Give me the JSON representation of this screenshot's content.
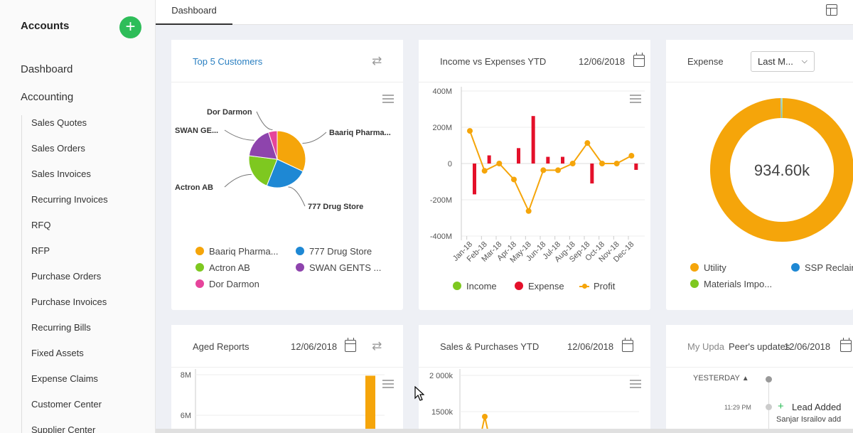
{
  "sidebar": {
    "title": "Accounts",
    "add_symbol": "+",
    "dashboard": "Dashboard",
    "accounting": "Accounting",
    "items": [
      "Sales Quotes",
      "Sales Orders",
      "Sales Invoices",
      "Recurring Invoices",
      "RFQ",
      "RFP",
      "Purchase Orders",
      "Purchase Invoices",
      "Recurring Bills",
      "Fixed Assets",
      "Expense Claims",
      "Customer Center",
      "Supplier Center"
    ]
  },
  "tabs": {
    "active": "Dashboard"
  },
  "cards": {
    "top5": {
      "title": "Top 5 Customers"
    },
    "income": {
      "title": "Income vs Expenses YTD",
      "date": "12/06/2018"
    },
    "expense": {
      "title": "Expense",
      "filter": "Last M...",
      "center_value": "934.60k"
    },
    "aged": {
      "title": "Aged Reports",
      "date": "12/06/2018"
    },
    "sales": {
      "title": "Sales & Purchases YTD",
      "date": "12/06/2018"
    },
    "updates": {
      "title_a": "My Upda",
      "title_b": "Peer's updates",
      "date": "12/06/2018",
      "group": "YESTERDAY",
      "time": "11:29 PM",
      "entry": "Lead Added",
      "entry_by": "Sanjar Israilov add"
    }
  },
  "colors": {
    "accent_green": "#2ebd59",
    "blue": "#1e88d4",
    "orange": "#f5a50a",
    "red": "#e4102a",
    "purple": "#8e44ad",
    "pink": "#e6449b",
    "lime": "#7ec820"
  },
  "chart_data": [
    {
      "type": "pie",
      "categories": [
        "Baariq Pharma...",
        "777 Drug Store",
        "Actron AB",
        "SWAN GENTS ...",
        "Dor Darmon"
      ],
      "slice_labels": [
        "Baariq Pharma...",
        "777 Drug Store",
        "Actron AB",
        "SWAN GE...",
        "Dor Darmon"
      ],
      "values": [
        32,
        24,
        21,
        18,
        5
      ],
      "colors": [
        "#f5a50a",
        "#1e88d4",
        "#7ec820",
        "#8e44ad",
        "#e6449b"
      ]
    },
    {
      "type": "bar",
      "categories": [
        "Jan-18",
        "Feb-18",
        "Mar-18",
        "Apr-18",
        "May-18",
        "Jun-18",
        "Jul-18",
        "Aug-18",
        "Sep-18",
        "Oct-18",
        "Nov-18",
        "Dec-18"
      ],
      "ylim": [
        -400,
        400
      ],
      "yticks": [
        "400M",
        "200M",
        "0",
        "-200M",
        "-400M"
      ],
      "series": [
        {
          "name": "Income",
          "type": "bar",
          "color": "#7ec820",
          "values": [
            0,
            0,
            0,
            0,
            0,
            0,
            0,
            0,
            0,
            0,
            0,
            0
          ]
        },
        {
          "name": "Expense",
          "type": "bar",
          "color": "#e4102a",
          "values": [
            -170,
            45,
            0,
            85,
            262,
            37,
            37,
            0,
            -110,
            0,
            0,
            -35
          ]
        },
        {
          "name": "Profit",
          "type": "line",
          "color": "#f5a50a",
          "values": [
            180,
            -40,
            0,
            -88,
            -262,
            -37,
            -37,
            0,
            113,
            0,
            0,
            43
          ]
        }
      ]
    },
    {
      "type": "pie",
      "center_label": "934.60k",
      "categories": [
        "Utility",
        "SSP Reclaim",
        "Materials Impo..."
      ],
      "values": [
        99.6,
        0.2,
        0.2
      ],
      "colors": [
        "#f5a50a",
        "#1e88d4",
        "#7ec820"
      ]
    },
    {
      "type": "bar",
      "yticks": [
        "8M",
        "6M"
      ],
      "series": [
        {
          "values": [
            7.95
          ]
        }
      ]
    },
    {
      "type": "line",
      "yticks": [
        "2 000k",
        "1500k"
      ],
      "series": [
        {
          "values": [
            1500
          ]
        }
      ]
    }
  ]
}
